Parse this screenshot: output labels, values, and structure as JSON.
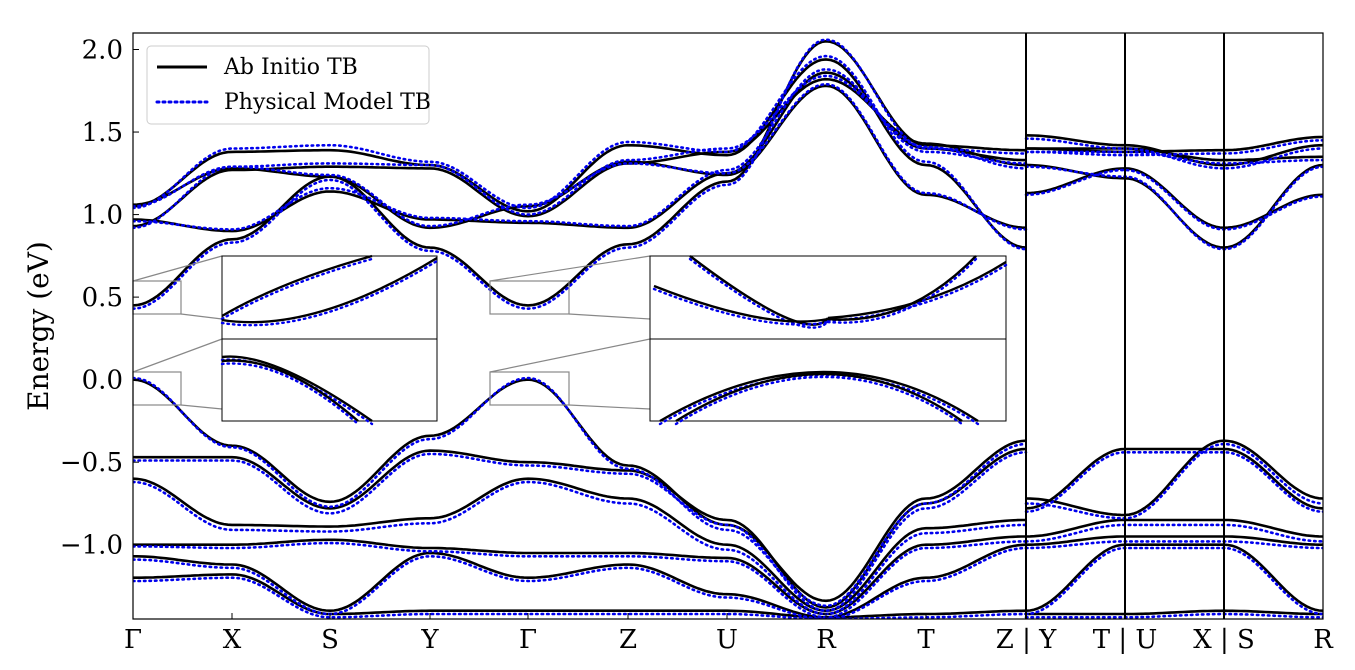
{
  "chart_data": {
    "type": "line",
    "title": "",
    "xlabel": "",
    "ylabel": "Energy (eV)",
    "ylim": [
      -1.45,
      2.1
    ],
    "yticks": [
      {
        "value": 2.0,
        "label": "2.0"
      },
      {
        "value": 1.5,
        "label": "1.5"
      },
      {
        "value": 1.0,
        "label": "1.0"
      },
      {
        "value": 0.5,
        "label": "0.5"
      },
      {
        "value": 0.0,
        "label": "0.0"
      },
      {
        "value": -0.5,
        "label": "−0.5"
      },
      {
        "value": -1.0,
        "label": "−1.0"
      }
    ],
    "kpath_labels": [
      "Γ",
      "X",
      "S",
      "Y",
      "Γ",
      "Z",
      "U",
      "R",
      "T",
      "Z|Y",
      "T|U",
      "X|S",
      "R"
    ],
    "kpath_positions": [
      0,
      1,
      2,
      3,
      4,
      5,
      6,
      7,
      8,
      9,
      10,
      11,
      12
    ],
    "section_breaks": [
      9,
      10,
      11
    ],
    "legend": {
      "placement": "top-left",
      "entries": [
        {
          "name": "Ab Initio TB",
          "color": "#000000",
          "style": "solid"
        },
        {
          "name": "Physical Model TB",
          "color": "#0000ee",
          "style": "dotted"
        }
      ]
    },
    "grid": false,
    "series": [
      {
        "name": "Ab Initio TB",
        "bands": [
          [
            1.06,
            1.28,
            1.23,
            0.92,
            1.05,
            1.32,
            1.24,
            1.78,
            1.12,
            0.92,
            1.13,
            1.28,
            0.92,
            1.12
          ],
          [
            1.05,
            1.38,
            1.39,
            1.3,
            1.02,
            1.42,
            1.36,
            1.94,
            1.3,
            0.8,
            1.3,
            1.22,
            0.8,
            1.3
          ],
          [
            0.97,
            0.9,
            1.14,
            0.97,
            0.95,
            0.92,
            1.25,
            1.86,
            1.4,
            1.33,
            1.4,
            1.4,
            1.33,
            1.35
          ],
          [
            0.93,
            1.27,
            1.29,
            1.28,
            0.99,
            1.31,
            1.38,
            1.82,
            1.43,
            1.3,
            1.48,
            1.42,
            1.3,
            1.42
          ],
          [
            0.45,
            0.85,
            1.23,
            0.8,
            0.45,
            0.82,
            1.2,
            2.05,
            1.42,
            1.39,
            1.4,
            1.38,
            1.39,
            1.47
          ],
          [
            0.0,
            -0.4,
            -0.74,
            -0.34,
            0.0,
            -0.52,
            -0.88,
            -1.34,
            -0.72,
            -0.37,
            -0.72,
            -0.82,
            -0.37,
            -0.72
          ],
          [
            -0.47,
            -0.47,
            -0.78,
            -0.43,
            -0.5,
            -0.55,
            -0.85,
            -1.38,
            -0.75,
            -0.42,
            -0.78,
            -0.42,
            -0.42,
            -0.78
          ],
          [
            -0.6,
            -0.88,
            -0.89,
            -0.84,
            -0.6,
            -0.72,
            -1.0,
            -1.4,
            -0.9,
            -0.85,
            -0.95,
            -0.85,
            -0.85,
            -0.95
          ],
          [
            -1.0,
            -1.0,
            -0.97,
            -1.02,
            -1.05,
            -1.05,
            -1.08,
            -1.42,
            -1.0,
            -0.95,
            -1.0,
            -0.95,
            -0.95,
            -1.0
          ],
          [
            -1.07,
            -1.12,
            -1.4,
            -1.05,
            -1.2,
            -1.12,
            -1.3,
            -1.44,
            -1.2,
            -1.0,
            -1.4,
            -1.0,
            -1.0,
            -1.4
          ],
          [
            -1.2,
            -1.18,
            -1.42,
            -1.4,
            -1.4,
            -1.4,
            -1.4,
            -1.44,
            -1.42,
            -1.4,
            -1.42,
            -1.42,
            -1.4,
            -1.42
          ]
        ]
      },
      {
        "name": "Physical Model TB",
        "bands": [
          [
            1.05,
            1.29,
            1.24,
            0.93,
            1.06,
            1.31,
            1.25,
            1.79,
            1.13,
            0.91,
            1.12,
            1.27,
            0.91,
            1.11
          ],
          [
            1.04,
            1.4,
            1.42,
            1.32,
            1.04,
            1.44,
            1.38,
            1.96,
            1.32,
            0.79,
            1.29,
            1.23,
            0.79,
            1.29
          ],
          [
            0.96,
            0.91,
            1.16,
            0.98,
            0.96,
            0.93,
            1.27,
            1.88,
            1.38,
            1.31,
            1.38,
            1.38,
            1.31,
            1.33
          ],
          [
            0.92,
            1.29,
            1.31,
            1.3,
            1.0,
            1.33,
            1.4,
            1.84,
            1.41,
            1.28,
            1.46,
            1.4,
            1.28,
            1.4
          ],
          [
            0.43,
            0.83,
            1.21,
            0.78,
            0.43,
            0.8,
            1.18,
            2.06,
            1.4,
            1.37,
            1.38,
            1.36,
            1.37,
            1.45
          ],
          [
            0.01,
            -0.41,
            -0.77,
            -0.36,
            0.01,
            -0.54,
            -0.91,
            -1.37,
            -0.75,
            -0.39,
            -0.75,
            -0.84,
            -0.39,
            -0.75
          ],
          [
            -0.49,
            -0.49,
            -0.81,
            -0.45,
            -0.52,
            -0.57,
            -0.88,
            -1.4,
            -0.78,
            -0.44,
            -0.8,
            -0.44,
            -0.44,
            -0.8
          ],
          [
            -0.62,
            -0.91,
            -0.92,
            -0.87,
            -0.62,
            -0.75,
            -1.03,
            -1.42,
            -0.93,
            -0.88,
            -0.98,
            -0.88,
            -0.88,
            -0.98
          ],
          [
            -1.01,
            -1.02,
            -0.99,
            -1.04,
            -1.07,
            -1.07,
            -1.1,
            -1.44,
            -1.02,
            -0.98,
            -1.02,
            -0.98,
            -0.98,
            -1.02
          ],
          [
            -1.09,
            -1.14,
            -1.42,
            -1.07,
            -1.22,
            -1.14,
            -1.32,
            -1.45,
            -1.22,
            -1.02,
            -1.42,
            -1.02,
            -1.02,
            -1.42
          ],
          [
            -1.22,
            -1.2,
            -1.44,
            -1.42,
            -1.42,
            -1.42,
            -1.42,
            -1.45,
            -1.44,
            -1.42,
            -1.44,
            -1.44,
            -1.42,
            -1.44
          ]
        ]
      }
    ],
    "insets": [
      {
        "zoom_of": "Gamma (left) valence/conduction edges",
        "x_range": [
          0,
          0.5
        ]
      },
      {
        "zoom_of": "Gamma (centre) valence/conduction edges",
        "x_range": [
          3.6,
          4.4
        ]
      }
    ]
  }
}
